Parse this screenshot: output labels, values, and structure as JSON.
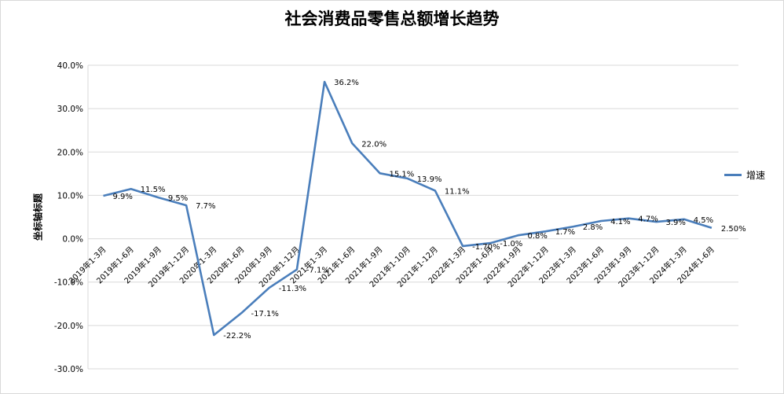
{
  "chart_data": {
    "type": "line",
    "title": "社会消费品零售总额增长趋势",
    "ylabel": "坐标轴标题",
    "xlabel": "",
    "ylim": [
      -30,
      40
    ],
    "yticks": [
      "40.0%",
      "30.0%",
      "20.0%",
      "10.0%",
      "0.0%",
      "-10.0%",
      "-20.0%",
      "-30.0%"
    ],
    "ytick_values": [
      40,
      30,
      20,
      10,
      0,
      -10,
      -20,
      -30
    ],
    "grid": true,
    "legend_position": "right",
    "line_color": "#4a7ebb",
    "categories": [
      "2019年1-3月",
      "2019年1-6月",
      "2019年1-9月",
      "2019年1-12月",
      "2020年1-3月",
      "2020年1-6月",
      "2020年1-9月",
      "2020年1-12月",
      "2021年1-3月",
      "2021年1-6月",
      "2021年1-9月",
      "2021年1-10月",
      "2021年1-12月",
      "2022年1-3月",
      "2022年1-6月",
      "2022年1-9月",
      "2022年1-12月",
      "2023年1-3月",
      "2023年1-6月",
      "2023年1-9月",
      "2023年1-12月",
      "2024年1-3月",
      "2024年1-6月"
    ],
    "series": [
      {
        "name": "增速",
        "values": [
          9.9,
          11.5,
          9.5,
          7.7,
          -22.2,
          -17.1,
          -11.3,
          -7.1,
          36.2,
          22.0,
          15.1,
          13.9,
          11.1,
          -1.7,
          -1.0,
          0.8,
          1.7,
          2.8,
          4.1,
          4.7,
          3.9,
          4.5,
          2.5
        ],
        "labels": [
          "9.9%",
          "11.5%",
          "9.5%",
          "7.7%",
          "-22.2%",
          "-17.1%",
          "-11.3%",
          "-7.1%",
          "36.2%",
          "22.0%",
          "15.1%",
          "13.9%",
          "11.1%",
          "-1.70%",
          "-1.0%",
          "0.8%",
          "1.7%",
          "2.8%",
          "4.1%",
          "4.7%",
          "3.9%",
          "4.5%",
          "2.50%"
        ]
      }
    ]
  }
}
